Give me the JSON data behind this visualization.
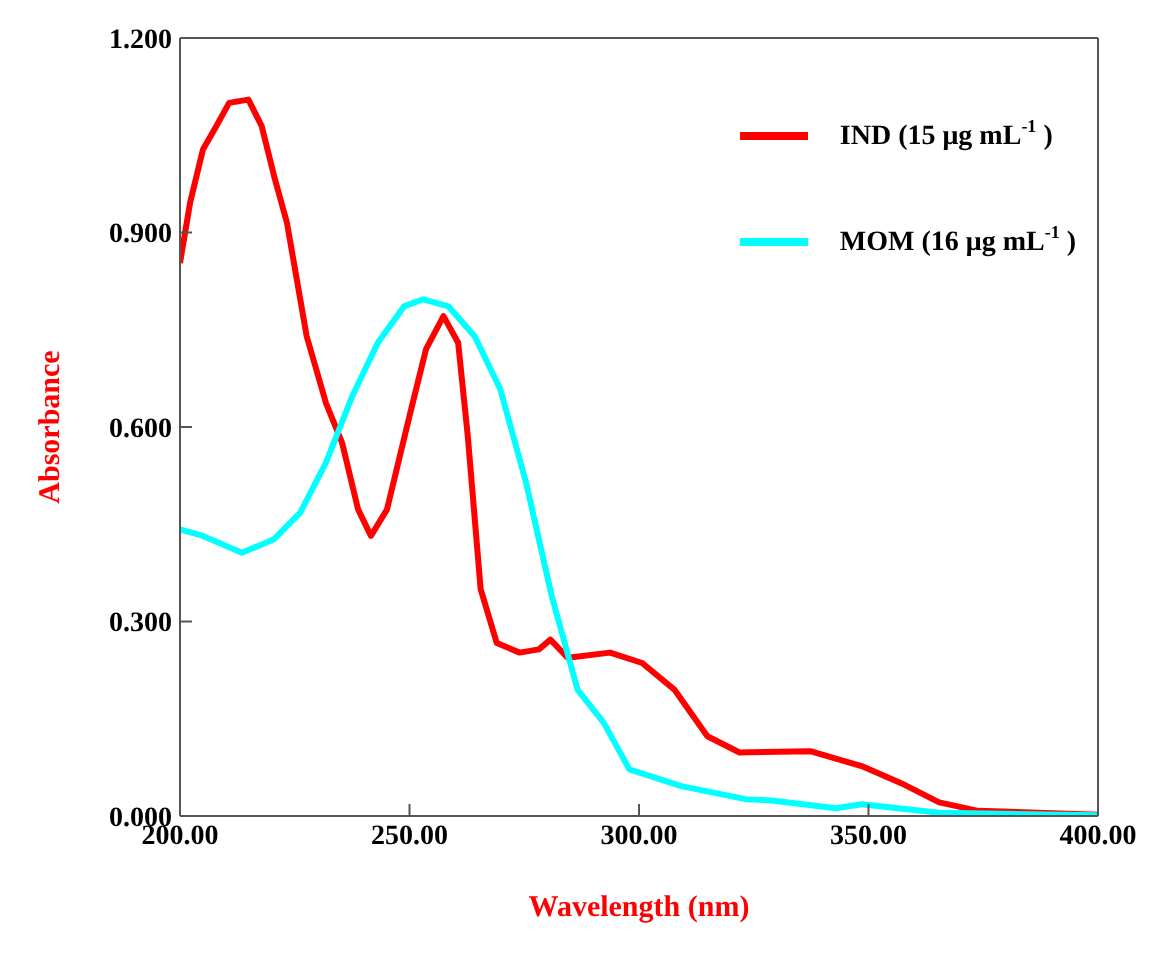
{
  "chart_data": {
    "type": "line",
    "xlabel": "Wavelength (nm)",
    "ylabel": "Absorbance",
    "xlim": [
      200,
      400
    ],
    "xticks": [
      {
        "value": 200,
        "label": "200.00"
      },
      {
        "value": 250,
        "label": "250.00"
      },
      {
        "value": 300,
        "label": "300.00"
      },
      {
        "value": 350,
        "label": "350.00"
      },
      {
        "value": 400,
        "label": "400.00"
      }
    ],
    "ylim": [
      0,
      1.2
    ],
    "yticks": [
      {
        "value": 0,
        "label": "0.000"
      },
      {
        "value": 0.3,
        "label": "0.300"
      },
      {
        "value": 0.6,
        "label": "0.600"
      },
      {
        "value": 0.9,
        "label": "0.900"
      },
      {
        "value": 1.2,
        "label": "1.200"
      }
    ],
    "grid": false,
    "legend": "top right",
    "marker": "none",
    "line_style": "solid",
    "series": [
      {
        "name": "IND (15 μg mL$^{-1}$ )",
        "color": "#ff0000",
        "x": [
          200,
          202.2,
          205,
          207.9,
          210.7,
          214.9,
          217.8,
          220.5,
          223.3,
          227.6,
          231.8,
          235.3,
          238.8,
          241.6,
          245.1,
          250,
          253.6,
          257.4,
          260.6,
          262.7,
          265.5,
          269,
          274,
          278.2,
          280.7,
          284.5,
          293.7,
          300.7,
          307.7,
          314.9,
          321.9,
          337.3,
          348.5,
          357,
          365.4,
          373.9,
          400
        ],
        "values": [
          0.853,
          0.946,
          1.028,
          1.064,
          1.1,
          1.105,
          1.064,
          0.987,
          0.915,
          0.74,
          0.637,
          0.576,
          0.473,
          0.432,
          0.473,
          0.617,
          0.72,
          0.771,
          0.73,
          0.586,
          0.35,
          0.267,
          0.252,
          0.257,
          0.272,
          0.244,
          0.252,
          0.236,
          0.195,
          0.123,
          0.098,
          0.1,
          0.077,
          0.051,
          0.021,
          0.008,
          0.002
        ]
      },
      {
        "name": "MOM (16 μg mL$^{-1}$ )",
        "color": "#00ffff",
        "x": [
          200,
          205,
          213.5,
          220.5,
          226.2,
          231.8,
          237.5,
          243.1,
          248.8,
          253,
          258.5,
          264.2,
          269.8,
          275.4,
          281,
          286.6,
          292.3,
          297.9,
          309.2,
          323.2,
          328.9,
          342.9,
          348.5,
          365.4,
          400
        ],
        "values": [
          0.442,
          0.432,
          0.406,
          0.427,
          0.468,
          0.545,
          0.647,
          0.73,
          0.786,
          0.797,
          0.786,
          0.74,
          0.658,
          0.514,
          0.339,
          0.195,
          0.144,
          0.072,
          0.046,
          0.026,
          0.024,
          0.012,
          0.018,
          0.005,
          0.001
        ]
      }
    ]
  }
}
